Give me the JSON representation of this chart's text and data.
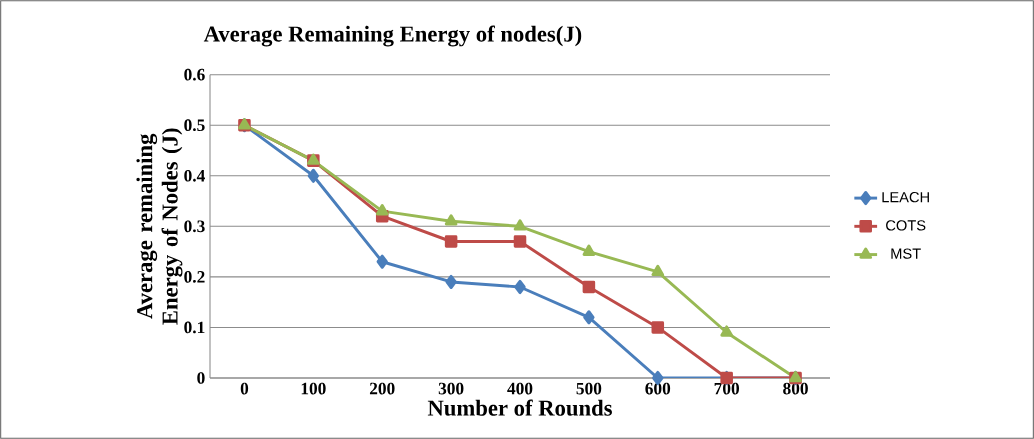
{
  "chart_data": {
    "type": "line",
    "title": "Average Remaining Energy of nodes(J)",
    "xlabel": "Number of Rounds",
    "ylabel": "Average remaining Energy of Nodes (J)",
    "categories": [
      "0",
      "100",
      "200",
      "300",
      "400",
      "500",
      "600",
      "700",
      "800"
    ],
    "series": [
      {
        "name": "LEACH",
        "color": "#4a7ebb",
        "marker": "diamond",
        "values": [
          0.5,
          0.4,
          0.23,
          0.19,
          0.18,
          0.12,
          0,
          0,
          0
        ]
      },
      {
        "name": "COTS",
        "color": "#be4b48",
        "marker": "square",
        "values": [
          0.5,
          0.43,
          0.32,
          0.27,
          0.27,
          0.18,
          0.1,
          0,
          0
        ]
      },
      {
        "name": "MST",
        "color": "#98b954",
        "marker": "triangle",
        "values": [
          0.5,
          0.43,
          0.33,
          0.31,
          0.3,
          0.25,
          0.21,
          0.09,
          0
        ]
      }
    ],
    "ylim": [
      0,
      0.6
    ],
    "yticks": [
      0,
      0.1,
      0.2,
      0.3,
      0.4,
      0.5,
      0.6
    ],
    "grid": "y",
    "legend": "right",
    "line_style": "solid"
  }
}
